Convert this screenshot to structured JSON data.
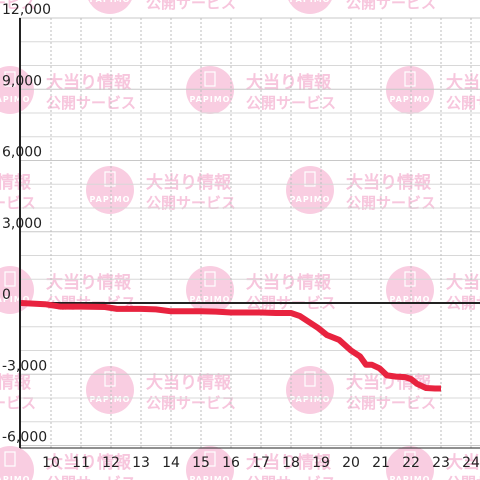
{
  "chart_data": {
    "type": "line",
    "x_ticks": [
      10,
      11,
      12,
      13,
      14,
      15,
      16,
      17,
      18,
      19,
      20,
      21,
      22,
      23,
      24
    ],
    "y_ticks": [
      12000,
      9000,
      6000,
      3000,
      0,
      -3000,
      -6000
    ],
    "y_tick_labels": [
      "12,000",
      "9,000",
      "6,000",
      "3,000",
      "0",
      "-3,000",
      "-6,000"
    ],
    "xlim": [
      9,
      24.3
    ],
    "ylim": [
      -6000,
      12000
    ],
    "grid": true,
    "series": [
      {
        "x": [
          9,
          9.8,
          10.3,
          11,
          11.8,
          12.2,
          13,
          13.5,
          14,
          15,
          15.5,
          16,
          17,
          17.5,
          18,
          18.3,
          18.6,
          18.9,
          19.2,
          19.6,
          20,
          20.3,
          20.5,
          20.7,
          20.95,
          21.2,
          21.5,
          21.8,
          22.0,
          22.2,
          22.5,
          22.8,
          23.0
        ],
        "y": [
          0,
          -50,
          -150,
          -150,
          -170,
          -250,
          -250,
          -270,
          -350,
          -350,
          -360,
          -400,
          -400,
          -420,
          -420,
          -550,
          -800,
          -1050,
          -1350,
          -1550,
          -2000,
          -2250,
          -2600,
          -2600,
          -2750,
          -3050,
          -3100,
          -3120,
          -3200,
          -3400,
          -3580,
          -3600,
          -3600
        ],
        "color": "#e8233f"
      }
    ],
    "watermark": {
      "line1": "大当り情報",
      "line2": "公開サービス",
      "logo_text": "PAPIMO"
    }
  }
}
